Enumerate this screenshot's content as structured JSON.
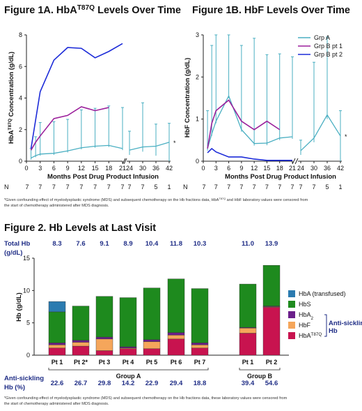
{
  "chart_data": [
    {
      "id": "fig1a",
      "type": "line",
      "title": "Figure 1A.  HbA",
      "title_sup": "T87Q",
      "title_tail": " Levels Over Time",
      "ylabel": "HbA",
      "ylabel_sup": "T87Q",
      "ylabel_tail": " Concentration (g/dL)",
      "xlabel": "Months Post Drug Product Infusion",
      "ylim": [
        0,
        8
      ],
      "yticks": [
        "0",
        "2",
        "4",
        "6",
        "8"
      ],
      "xticks": [
        "0",
        "3",
        "6",
        "9",
        "12",
        "15",
        "18",
        "21",
        "24",
        "30",
        "36",
        "42"
      ],
      "n_label": "N",
      "n_values": [
        "7",
        "7",
        "7",
        "7",
        "7",
        "7",
        "7",
        "7",
        "7",
        "7",
        "5",
        "1"
      ],
      "axis_break_after": 21,
      "series": [
        {
          "name": "Grp A",
          "color": "#4aafc2",
          "x": [
            1,
            2,
            3,
            6,
            9,
            12,
            15,
            18,
            21
          ],
          "y": [
            0.2,
            0.35,
            0.45,
            0.5,
            0.65,
            0.85,
            0.95,
            1.0,
            0.8
          ],
          "err_low": [
            0.1,
            0.1,
            0.1,
            0.1,
            0.1,
            0.1,
            0.1,
            0.1,
            0.1
          ],
          "err_high": [
            0.6,
            1.2,
            2.0,
            2.0,
            2.0,
            2.4,
            2.4,
            2.5,
            2.6
          ]
        },
        {
          "name": "Grp A",
          "color": "#4aafc2",
          "x": [
            24,
            30,
            36,
            42
          ],
          "y": [
            0.7,
            0.9,
            0.95,
            1.2
          ],
          "err_low": [
            0.3,
            0.3,
            0.6,
            1.2
          ],
          "err_high": [
            1.2,
            2.8,
            1.4,
            1.2
          ]
        },
        {
          "name": "Grp B pt 1",
          "color": "#9b1f9b",
          "x": [
            1,
            2,
            3,
            6,
            9,
            12,
            15,
            18
          ],
          "y": [
            0.7,
            1.2,
            1.6,
            2.7,
            2.9,
            3.45,
            3.2,
            3.4
          ]
        },
        {
          "name": "Grp B pt 2",
          "color": "#1c2bd8",
          "x": [
            1,
            2,
            3,
            6,
            9,
            12,
            15,
            18,
            21
          ],
          "y": [
            0.8,
            2.6,
            4.4,
            6.4,
            7.2,
            7.15,
            6.55,
            6.95,
            7.45
          ]
        }
      ],
      "marker": "*"
    },
    {
      "id": "fig1b",
      "type": "line",
      "title": "Figure 1B.  HbF Levels Over Time",
      "ylabel": "HbF Concentration (g/dL)",
      "xlabel": "Months Post Drug Product Infusion",
      "ylim": [
        0,
        3
      ],
      "yticks": [
        "0",
        "1",
        "2",
        "3"
      ],
      "xticks": [
        "0",
        "3",
        "6",
        "9",
        "12",
        "15",
        "18",
        "21",
        "24",
        "30",
        "36",
        "42"
      ],
      "n_label": "N",
      "n_values": [
        "7",
        "7",
        "7",
        "7",
        "7",
        "7",
        "7",
        "7",
        "7",
        "7",
        "5",
        "1"
      ],
      "legend": [
        "Grp A",
        "Grp B pt 1",
        "Grp B pt 2"
      ],
      "legend_position": "top-right",
      "series": [
        {
          "name": "Grp A",
          "color": "#4aafc2",
          "x": [
            1,
            2,
            3,
            6,
            9,
            12,
            15,
            18,
            21
          ],
          "y": [
            0.3,
            0.65,
            0.95,
            1.55,
            0.75,
            0.42,
            0.43,
            0.55,
            0.58
          ],
          "err_low": [
            0.05,
            0.05,
            0.05,
            0.05,
            0.05,
            0.05,
            0.05,
            0.05,
            0.05
          ],
          "err_high": [
            0.9,
            2.1,
            2.5,
            2.5,
            2.0,
            2.5,
            2.1,
            2.0,
            1.9
          ]
        },
        {
          "name": "Grp A",
          "color": "#4aafc2",
          "x": [
            24,
            30,
            36,
            42
          ],
          "y": [
            0.25,
            0.55,
            1.1,
            0.6
          ],
          "err_low": [
            0.1,
            0.1,
            0.1,
            0.6
          ],
          "err_high": [
            0.25,
            1.8,
            1.85,
            0.6
          ]
        },
        {
          "name": "Grp B pt 1",
          "color": "#9b1f9b",
          "x": [
            1,
            2,
            3,
            6,
            9,
            12,
            15,
            18
          ],
          "y": [
            0.3,
            0.9,
            1.2,
            1.45,
            0.95,
            0.75,
            0.95,
            0.75
          ]
        },
        {
          "name": "Grp B pt 2",
          "color": "#1c2bd8",
          "x": [
            1,
            2,
            3,
            6,
            9,
            12,
            15,
            18,
            21
          ],
          "y": [
            0.2,
            0.3,
            0.22,
            0.1,
            0.1,
            0.05,
            0.02,
            0.02,
            0.02
          ]
        }
      ],
      "marker": "*"
    },
    {
      "id": "fig2",
      "type": "bar",
      "title": "Figure 2.  Hb Levels at Last Visit",
      "ylabel": "Hb (g/dL)",
      "ylim": [
        0,
        15
      ],
      "yticks": [
        "0",
        "5",
        "10",
        "15"
      ],
      "categories": [
        "Pt 1",
        "Pt 2*",
        "Pt 3",
        "Pt 4",
        "Pt 5",
        "Pt 6",
        "Pt 7",
        "Pt 1",
        "Pt 2"
      ],
      "groups": [
        {
          "name": "Group A",
          "count": 7
        },
        {
          "name": "Group B",
          "count": 2
        }
      ],
      "total_hb_label": "Total Hb",
      "total_hb_unit": "(g/dL)",
      "total_hb": [
        "8.3",
        "7.6",
        "9.1",
        "8.9",
        "10.4",
        "11.8",
        "10.3",
        "11.0",
        "13.9"
      ],
      "anti_sickling_label": "Anti-sickling",
      "anti_sickling_unit": "Hb (%)",
      "anti_sickling": [
        "22.6",
        "26.7",
        "29.8",
        "14.2",
        "22.9",
        "29.4",
        "18.8",
        "39.4",
        "54.6"
      ],
      "legend": [
        {
          "name": "HbA (transfused)",
          "color": "#2b7bb0"
        },
        {
          "name": "HbS",
          "color": "#1e8a1e"
        },
        {
          "name": "HbA",
          "sub": "2",
          "color": "#6a1f8a"
        },
        {
          "name": "HbF",
          "color": "#f5a65b"
        },
        {
          "name": "HbA",
          "sup": "T87Q",
          "color": "#c8134f"
        }
      ],
      "legend_bracket": [
        "Anti-sickling",
        "Hb"
      ],
      "series": [
        {
          "name": "HbA (transfused)",
          "color": "#2b7bb0",
          "values": [
            1.6,
            0,
            0,
            0,
            0,
            0,
            0,
            0,
            0
          ]
        },
        {
          "name": "HbS",
          "color": "#1e8a1e",
          "values": [
            4.8,
            5.3,
            6.3,
            7.6,
            8.0,
            8.3,
            8.4,
            6.7,
            6.3
          ]
        },
        {
          "name": "HbA2",
          "color": "#6a1f8a",
          "values": [
            0.3,
            0.3,
            0.3,
            0.2,
            0.3,
            0.4,
            0.3,
            0.1,
            0.1
          ]
        },
        {
          "name": "HbF",
          "color": "#f5a65b",
          "values": [
            0.5,
            0.6,
            1.8,
            0.1,
            1.1,
            0.6,
            0.5,
            0.8,
            0.1
          ]
        },
        {
          "name": "HbAT87Q",
          "color": "#c8134f",
          "values": [
            1.1,
            1.4,
            0.7,
            1.0,
            1.0,
            2.5,
            1.1,
            3.4,
            7.4
          ]
        }
      ]
    }
  ],
  "footnote_top": {
    "text": "*Given confounding effect of myelodysplastic syndrome (MDS) and subsequent chemotherapy on the Hb fractions data, HbA",
    "sup": "T87Q",
    "tail": " and HbF laboratory values were censored from",
    "line2": "the start of chemotherapy administered after MDS diagnosis."
  },
  "footnote_bottom": {
    "line1": "*Given confounding effect of myelodysplastic syndrome (MDS) and subsequent chemotherapy on the Hb fractions data, these laboratory values were censored from",
    "line2": "the start of chemotherapy administered after MDS diagnosis."
  }
}
